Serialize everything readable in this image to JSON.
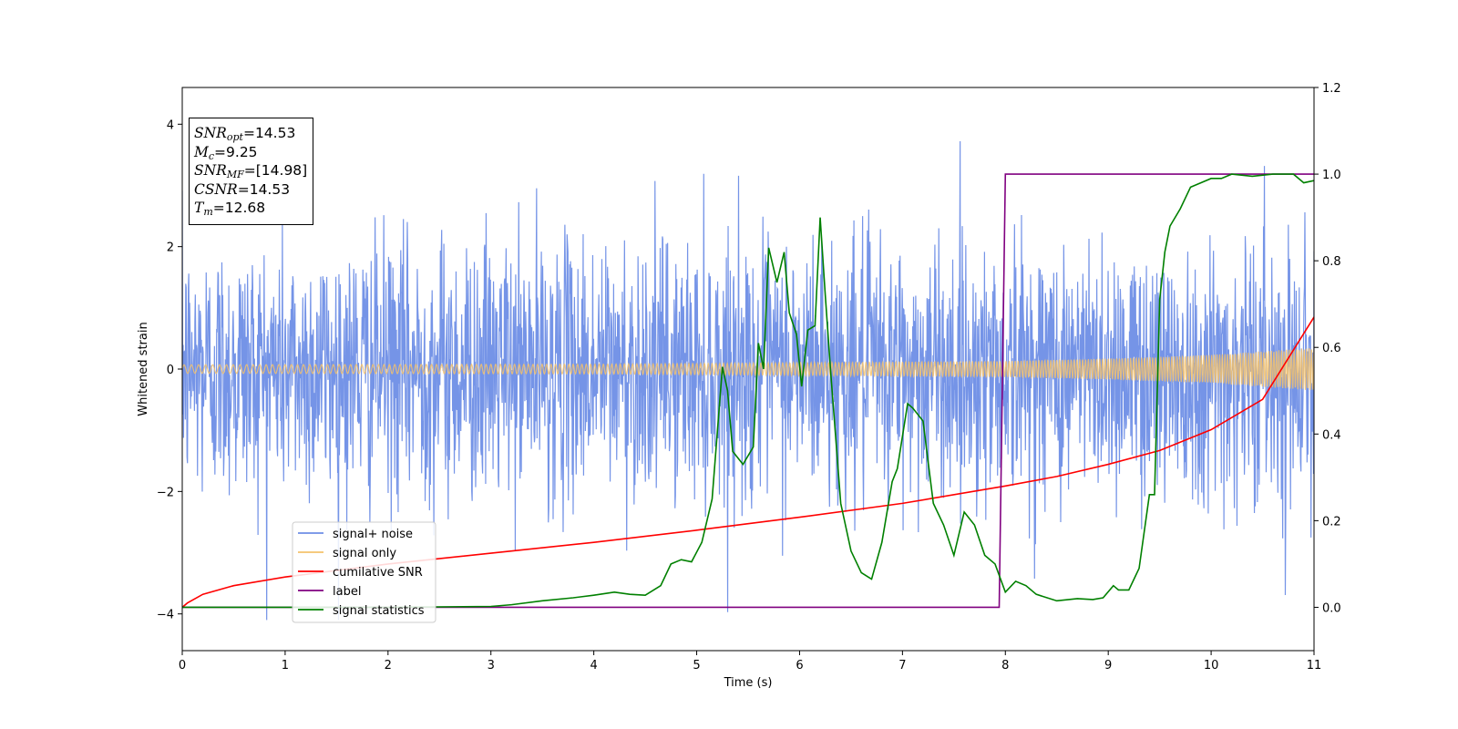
{
  "chart_data": {
    "type": "line",
    "xlabel": "Time (s)",
    "ylabel": "Whitened strain",
    "xlim": [
      0,
      11
    ],
    "ylim": [
      -4.6,
      4.6
    ],
    "y2lim": [
      -0.1,
      1.2
    ],
    "xticks": [
      "0",
      "1",
      "2",
      "3",
      "4",
      "5",
      "6",
      "7",
      "8",
      "9",
      "10",
      "11"
    ],
    "yticks": [
      "−4",
      "−2",
      "0",
      "2",
      "4"
    ],
    "y2ticks": [
      "0.0",
      "0.2",
      "0.4",
      "0.6",
      "0.8",
      "1.0",
      "1.2"
    ],
    "grid": false,
    "legend_position": "lower-left",
    "annotation": {
      "snr_opt": "=14.53",
      "mc": "=9.25",
      "snr_mf": "=[14.98]",
      "csnr": "=14.53",
      "tm": "=12.68"
    },
    "series": [
      {
        "name": "signal+ noise",
        "color": "#6e8ee6",
        "axis": "left",
        "description_stats": {
          "std": 1.0,
          "max": 4.15,
          "min": -4.15
        },
        "approx_envelope": [
          2.3,
          -2.3
        ]
      },
      {
        "name": "signal only",
        "color": "#f5c26b",
        "axis": "left",
        "amplitude_points": [
          [
            0,
            0.07
          ],
          [
            4,
            0.08
          ],
          [
            8,
            0.13
          ],
          [
            9,
            0.17
          ],
          [
            10,
            0.23
          ],
          [
            11,
            0.35
          ]
        ]
      },
      {
        "name": "cumilative SNR",
        "color": "#ff0000",
        "axis": "right",
        "x": [
          0,
          0.05,
          0.2,
          0.5,
          1,
          2,
          3,
          4,
          5,
          6,
          7,
          8,
          8.5,
          9,
          9.5,
          10,
          10.5,
          11
        ],
        "y": [
          0.0,
          0.01,
          0.03,
          0.05,
          0.07,
          0.1,
          0.125,
          0.15,
          0.178,
          0.208,
          0.24,
          0.28,
          0.302,
          0.33,
          0.362,
          0.41,
          0.48,
          0.67
        ]
      },
      {
        "name": "label",
        "color": "#800080",
        "axis": "right",
        "x": [
          0,
          7.94,
          8.0,
          11
        ],
        "y": [
          0,
          0,
          1,
          1
        ]
      },
      {
        "name": "signal statistics",
        "color": "#008000",
        "axis": "right",
        "x": [
          0,
          1,
          2,
          3,
          3.2,
          3.5,
          3.8,
          4.0,
          4.2,
          4.35,
          4.5,
          4.65,
          4.75,
          4.85,
          4.95,
          5.05,
          5.15,
          5.25,
          5.3,
          5.35,
          5.45,
          5.55,
          5.6,
          5.65,
          5.7,
          5.78,
          5.85,
          5.9,
          5.97,
          6.02,
          6.08,
          6.15,
          6.2,
          6.25,
          6.3,
          6.4,
          6.5,
          6.6,
          6.7,
          6.8,
          6.9,
          6.95,
          7.05,
          7.1,
          7.2,
          7.3,
          7.4,
          7.5,
          7.6,
          7.7,
          7.8,
          7.9,
          8.0,
          8.1,
          8.2,
          8.3,
          8.5,
          8.7,
          8.85,
          8.95,
          9.05,
          9.1,
          9.2,
          9.3,
          9.4,
          9.45,
          9.5,
          9.55,
          9.6,
          9.7,
          9.8,
          9.9,
          10.0,
          10.1,
          10.2,
          10.4,
          10.6,
          10.8,
          10.9,
          11.0
        ],
        "y": [
          0.0,
          0.0,
          0.0,
          0.002,
          0.006,
          0.015,
          0.022,
          0.028,
          0.035,
          0.03,
          0.028,
          0.05,
          0.1,
          0.11,
          0.105,
          0.15,
          0.25,
          0.555,
          0.5,
          0.36,
          0.33,
          0.37,
          0.61,
          0.55,
          0.83,
          0.75,
          0.82,
          0.68,
          0.63,
          0.51,
          0.64,
          0.65,
          0.9,
          0.72,
          0.55,
          0.24,
          0.13,
          0.08,
          0.065,
          0.15,
          0.29,
          0.32,
          0.47,
          0.46,
          0.43,
          0.24,
          0.19,
          0.12,
          0.22,
          0.19,
          0.12,
          0.1,
          0.035,
          0.06,
          0.05,
          0.03,
          0.015,
          0.02,
          0.018,
          0.022,
          0.05,
          0.04,
          0.04,
          0.09,
          0.26,
          0.26,
          0.71,
          0.82,
          0.88,
          0.92,
          0.97,
          0.98,
          0.99,
          0.99,
          1.0,
          0.995,
          1.0,
          1.0,
          0.98,
          0.985
        ]
      }
    ]
  }
}
